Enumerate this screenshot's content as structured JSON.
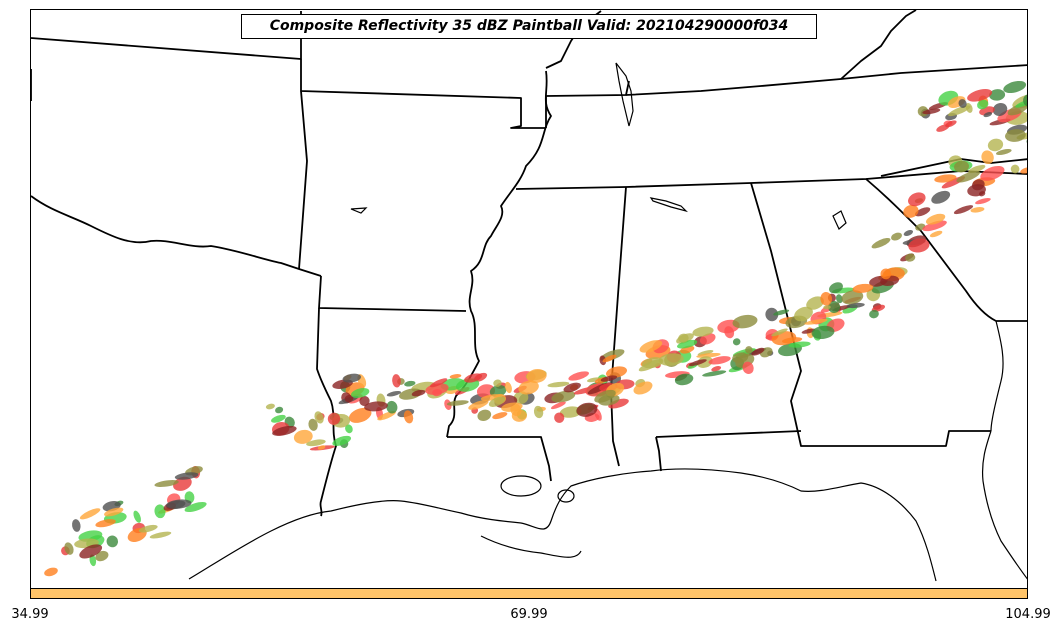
{
  "title": "Composite Reflectivity 35 dBZ Paintball Valid: 202104290000f034",
  "colorbar": {
    "color": "#ffc469",
    "ticks": [
      "34.99",
      "69.99",
      "104.99"
    ]
  },
  "map": {
    "region": "Southeastern United States",
    "features": [
      "state-borders",
      "coastline",
      "lakes"
    ],
    "paintball_colors": [
      "#e83a3a",
      "#ff7f1e",
      "#8b2323",
      "#3c8a3c",
      "#46d246",
      "#8c8c3c",
      "#ffa63a",
      "#505050",
      "#b4b450",
      "#ff5050"
    ]
  }
}
